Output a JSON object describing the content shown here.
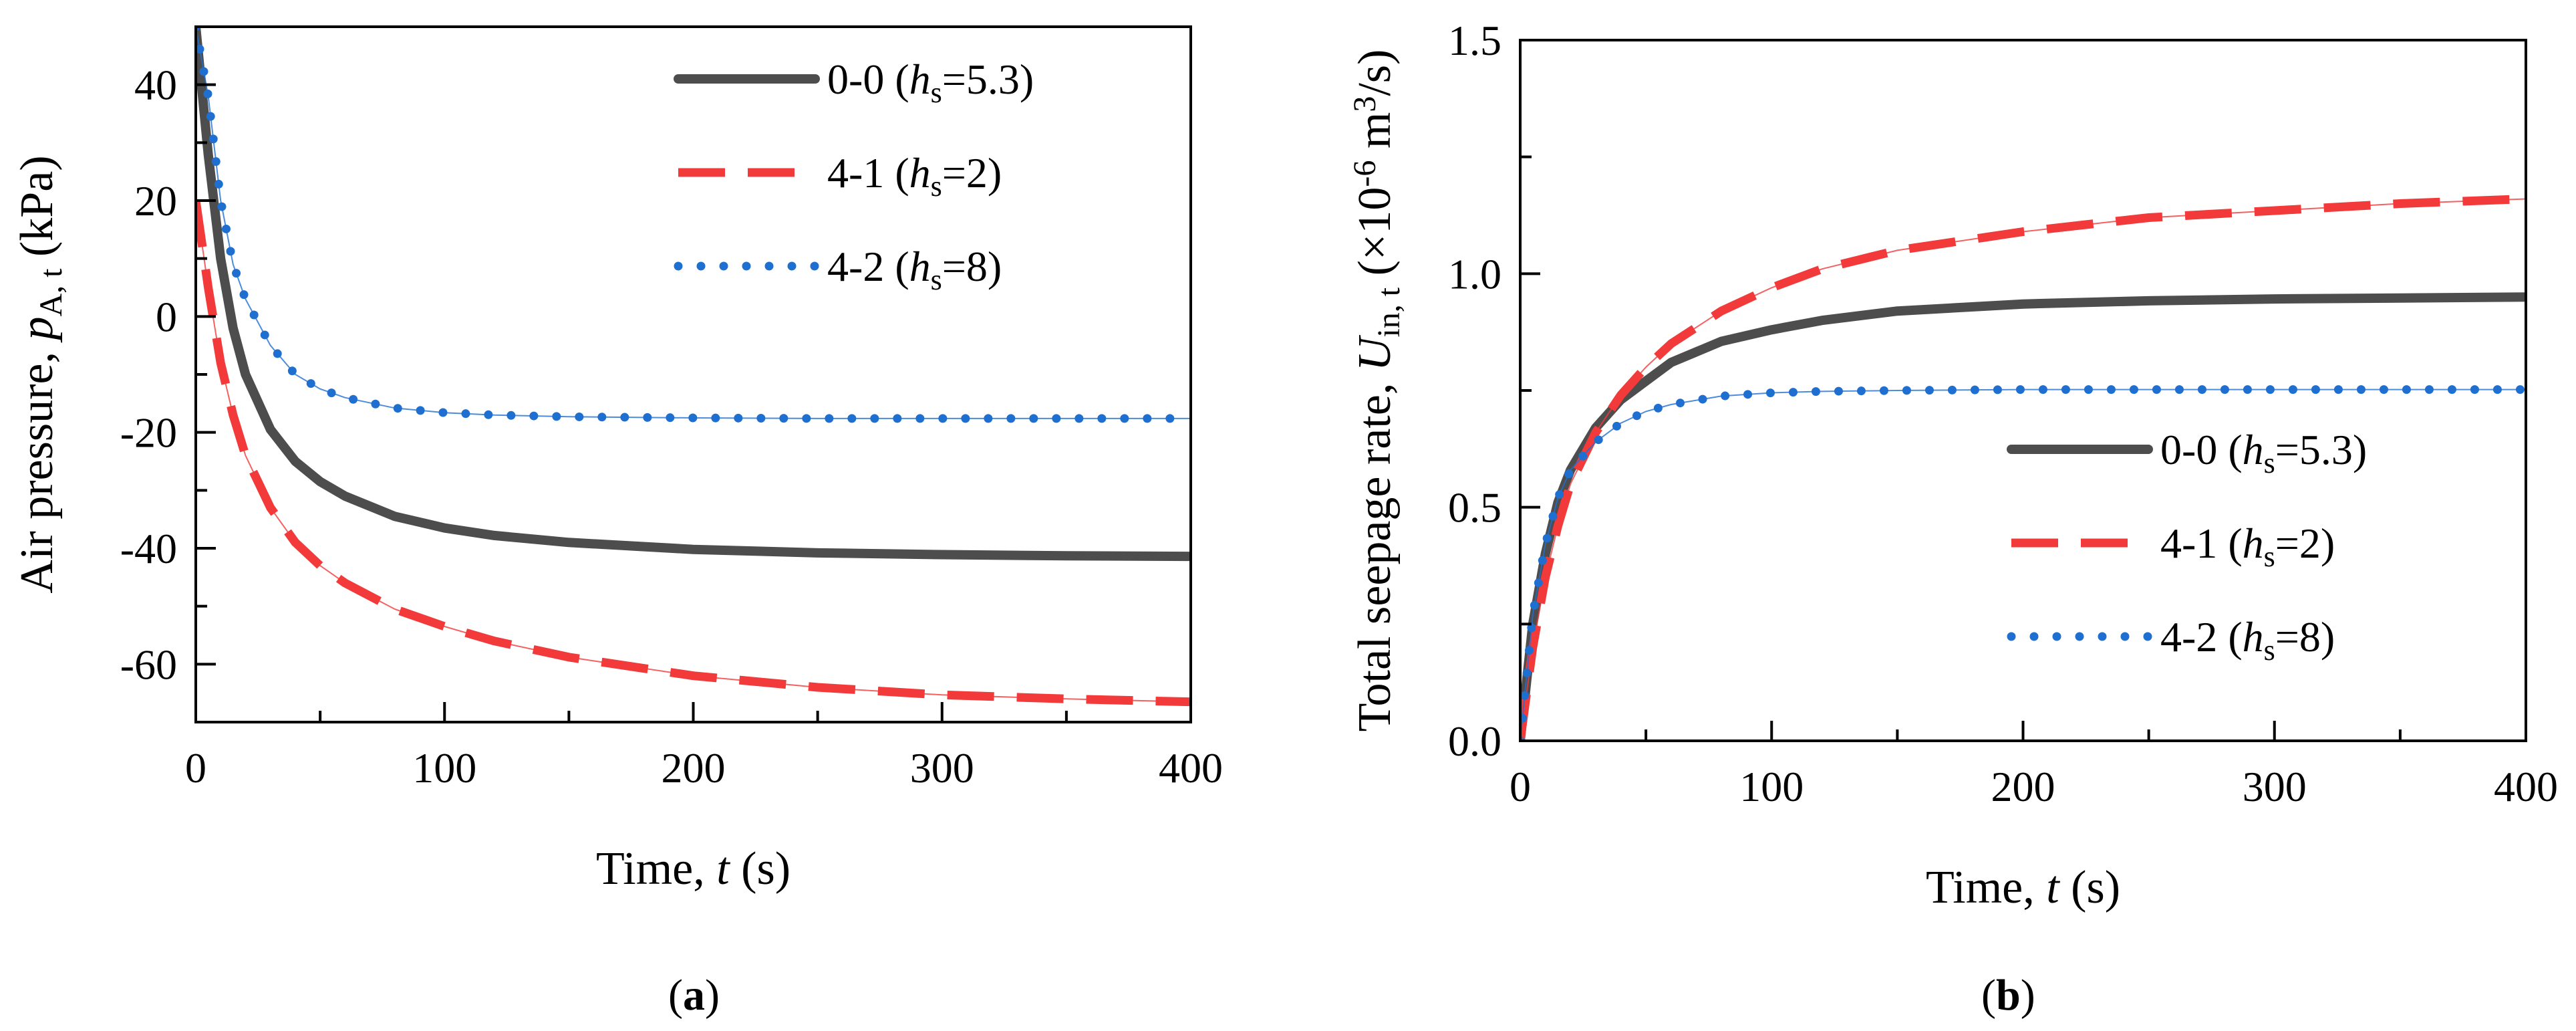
{
  "chart_data": [
    {
      "type": "line",
      "panel_label": "a",
      "xlabel": {
        "name": "Time, ",
        "symbol": "t",
        "unit": " (s)"
      },
      "ylabel": {
        "name": "Air pressure, ",
        "symbol": "p",
        "subscript": "A, t",
        "unit": " (kPa)"
      },
      "xlim": [
        0,
        400
      ],
      "ylim": [
        -70,
        50
      ],
      "xticks": [
        0,
        100,
        200,
        300,
        400
      ],
      "yticks": [
        40,
        20,
        0,
        -20,
        -40,
        -60
      ],
      "legend_position": "top-right",
      "series": [
        {
          "name": "0-0 (h=5.3)",
          "legend": {
            "pre": "0-0 (",
            "sym": "h",
            "sub": "s",
            "post": "=5.3)"
          },
          "color": "#4d4d4d",
          "style": "solid",
          "x": [
            0,
            5,
            10,
            15,
            20,
            30,
            40,
            50,
            60,
            80,
            100,
            120,
            150,
            200,
            250,
            300,
            350,
            400
          ],
          "y": [
            50,
            28,
            10,
            -2,
            -10,
            -19.5,
            -25,
            -28.5,
            -31,
            -34.5,
            -36.5,
            -37.8,
            -39,
            -40.2,
            -40.8,
            -41.1,
            -41.3,
            -41.4
          ]
        },
        {
          "name": "4-1 (h=2)",
          "legend": {
            "pre": "4-1 (",
            "sym": "h",
            "sub": "s",
            "post": "=2)"
          },
          "color": "#f23a3a",
          "style": "dashed",
          "x": [
            0,
            5,
            10,
            15,
            20,
            30,
            40,
            50,
            60,
            80,
            100,
            120,
            150,
            200,
            250,
            300,
            350,
            400
          ],
          "y": [
            20,
            5,
            -8,
            -17,
            -24,
            -33,
            -39,
            -43,
            -46,
            -50.5,
            -53.5,
            -56,
            -58.8,
            -62,
            -64,
            -65.3,
            -66,
            -66.5
          ]
        },
        {
          "name": "4-2 (h=8)",
          "legend": {
            "pre": "4-2 (",
            "sym": "h",
            "sub": "s",
            "post": "=8)"
          },
          "color": "#1f6fd1",
          "style": "dotted",
          "x": [
            0,
            5,
            10,
            15,
            20,
            30,
            40,
            50,
            60,
            80,
            100,
            120,
            150,
            200,
            250,
            300,
            350,
            400
          ],
          "y": [
            50,
            38,
            20,
            9,
            3,
            -5,
            -10,
            -12.5,
            -14,
            -15.8,
            -16.6,
            -17,
            -17.3,
            -17.5,
            -17.6,
            -17.6,
            -17.6,
            -17.6
          ]
        }
      ]
    },
    {
      "type": "line",
      "panel_label": "b",
      "xlabel": {
        "name": "Time, ",
        "symbol": "t",
        "unit": " (s)"
      },
      "ylabel": {
        "name": "Total seepage rate, ",
        "symbol": "U",
        "subscript": "in, t",
        "unit_pre": " (×10",
        "unit_exp1": "-6",
        "unit_mid": " m",
        "unit_exp2": "3",
        "unit_post": "/s)"
      },
      "xlim": [
        0,
        400
      ],
      "ylim": [
        0,
        1.5
      ],
      "xticks": [
        0,
        100,
        200,
        300,
        400
      ],
      "yticks": [
        0.0,
        0.5,
        1.0,
        1.5
      ],
      "ytick_labels": [
        "0.0",
        "0.5",
        "1.0",
        "1.5"
      ],
      "legend_position": "center-right",
      "series": [
        {
          "name": "0-0 (h=5.3)",
          "legend": {
            "pre": "0-0 (",
            "sym": "h",
            "sub": "s",
            "post": "=5.3)"
          },
          "color": "#4d4d4d",
          "style": "solid",
          "x": [
            0,
            5,
            10,
            15,
            20,
            30,
            40,
            50,
            60,
            80,
            100,
            120,
            150,
            200,
            250,
            300,
            350,
            400
          ],
          "y": [
            0,
            0.25,
            0.4,
            0.51,
            0.58,
            0.67,
            0.73,
            0.77,
            0.81,
            0.855,
            0.88,
            0.9,
            0.92,
            0.935,
            0.942,
            0.946,
            0.948,
            0.95
          ]
        },
        {
          "name": "4-1 (h=2)",
          "legend": {
            "pre": "4-1 (",
            "sym": "h",
            "sub": "s",
            "post": "=2)"
          },
          "color": "#f23a3a",
          "style": "dashed",
          "x": [
            0,
            5,
            10,
            15,
            20,
            30,
            40,
            50,
            60,
            80,
            100,
            120,
            150,
            200,
            250,
            300,
            350,
            400
          ],
          "y": [
            0,
            0.2,
            0.35,
            0.46,
            0.55,
            0.66,
            0.74,
            0.8,
            0.85,
            0.92,
            0.97,
            1.01,
            1.05,
            1.09,
            1.12,
            1.135,
            1.15,
            1.16
          ]
        },
        {
          "name": "4-2 (h=8)",
          "legend": {
            "pre": "4-2 (",
            "sym": "h",
            "sub": "s",
            "post": "=8)"
          },
          "color": "#1f6fd1",
          "style": "dotted",
          "x": [
            0,
            5,
            10,
            15,
            20,
            30,
            40,
            50,
            60,
            80,
            100,
            120,
            150,
            200,
            250,
            300,
            350,
            400
          ],
          "y": [
            0,
            0.27,
            0.42,
            0.52,
            0.58,
            0.64,
            0.68,
            0.705,
            0.72,
            0.738,
            0.745,
            0.748,
            0.75,
            0.752,
            0.752,
            0.752,
            0.752,
            0.752
          ]
        }
      ]
    }
  ]
}
